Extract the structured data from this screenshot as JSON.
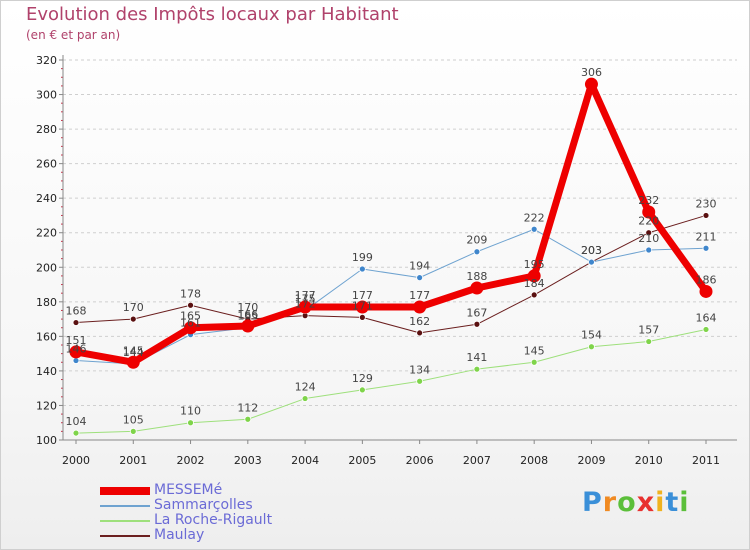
{
  "header": {
    "title": "Evolution des Impôts locaux par Habitant",
    "subtitle": "(en € et par an)"
  },
  "logo": {
    "text": "Proxiti",
    "letters": [
      {
        "ch": "P",
        "color": "#3a8fd8"
      },
      {
        "ch": "r",
        "color": "#f08a22"
      },
      {
        "ch": "o",
        "color": "#5bbf3a"
      },
      {
        "ch": "x",
        "color": "#e8312f"
      },
      {
        "ch": "i",
        "color": "#f0b21e"
      },
      {
        "ch": "t",
        "color": "#3a8fd8"
      },
      {
        "ch": "i",
        "color": "#5bbf3a"
      }
    ]
  },
  "chart_data": {
    "type": "line",
    "title": "Evolution des Impôts locaux par Habitant",
    "subtitle": "(en € et par an)",
    "xlabel": "",
    "ylabel": "",
    "x": [
      "2000",
      "2001",
      "2002",
      "2003",
      "2004",
      "2005",
      "2006",
      "2007",
      "2008",
      "2009",
      "2010",
      "2011"
    ],
    "ylim": [
      100,
      320
    ],
    "yticks": [
      100,
      120,
      140,
      160,
      180,
      200,
      220,
      240,
      260,
      280,
      300,
      320
    ],
    "grid": "horizontal dashed",
    "legend_position": "bottom-left",
    "series": [
      {
        "name": "Maulay",
        "color": "#6b1f1f",
        "marker": "#5a1010",
        "width": 1,
        "values": [
          168,
          170,
          178,
          170,
          172,
          171,
          162,
          167,
          184,
          203,
          220,
          230
        ]
      },
      {
        "name": "La Roche-Rigault",
        "color": "#9ee07c",
        "marker": "#7fd44a",
        "width": 1,
        "values": [
          104,
          105,
          110,
          112,
          124,
          129,
          134,
          141,
          145,
          154,
          157,
          164
        ]
      },
      {
        "name": "Sammarçolles",
        "color": "#6fa3d0",
        "marker": "#3f86cc",
        "width": 1,
        "values": [
          146,
          144,
          161,
          165,
          175,
          199,
          194,
          209,
          222,
          203,
          210,
          211
        ]
      },
      {
        "name": "MESSEMé",
        "color": "#ee0000",
        "marker": "#ee0000",
        "width": 7,
        "values": [
          151,
          145,
          165,
          166,
          177,
          177,
          177,
          188,
          195,
          306,
          232,
          186
        ]
      }
    ]
  }
}
